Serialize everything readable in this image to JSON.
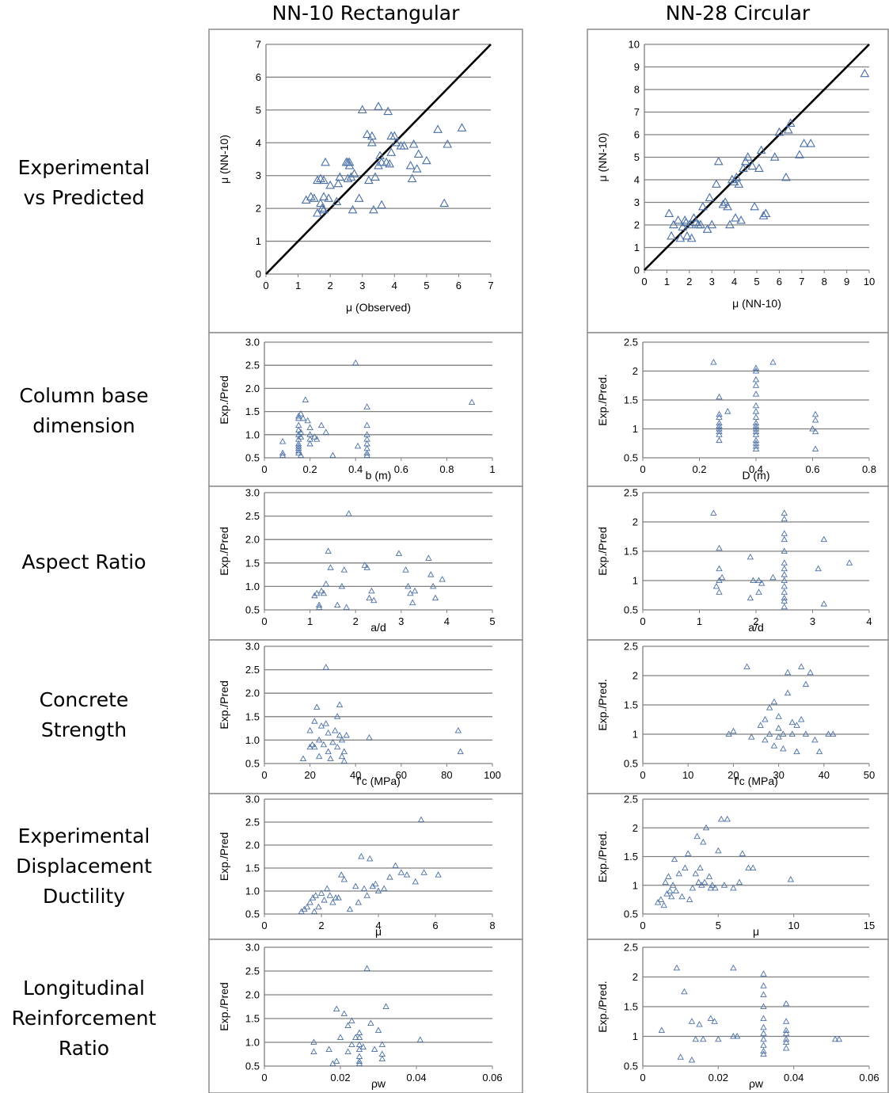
{
  "column_titles": [
    "NN-10 Rectangular",
    "NN-28 Circular"
  ],
  "row_labels": [
    [
      "Experimental",
      "vs Predicted"
    ],
    [
      "Column base",
      "dimension"
    ],
    [
      "Aspect Ratio"
    ],
    [
      "Concrete",
      "Strength"
    ],
    [
      "Experimental",
      "Displacement",
      "Ductility"
    ],
    [
      "Longitudinal",
      "Reinforcement",
      "Ratio"
    ]
  ],
  "colors": {
    "marker": "#4a6fa5",
    "grid": "#808080",
    "frame": "#8c8c8c",
    "diagonal": "#000000"
  },
  "chart_data": [
    {
      "type": "scatter",
      "panel": "rect-exp-vs-pred",
      "xlabel": "μ (Observed)",
      "ylabel": "μ (NN-10)",
      "xlim": [
        0,
        7
      ],
      "ylim": [
        0,
        7
      ],
      "xticks": [
        0,
        1,
        2,
        3,
        4,
        5,
        6,
        7
      ],
      "yticks": [
        0,
        1,
        2,
        3,
        4,
        5,
        6,
        7
      ],
      "grid": "horizontal",
      "reference_line": "y = x",
      "x": [
        1.25,
        1.4,
        1.5,
        1.6,
        1.6,
        1.7,
        1.7,
        1.75,
        1.8,
        1.85,
        1.8,
        1.8,
        1.95,
        2.0,
        2.2,
        2.25,
        2.3,
        2.5,
        2.55,
        2.55,
        2.6,
        2.6,
        2.65,
        2.7,
        2.75,
        2.9,
        3.0,
        3.15,
        3.2,
        3.3,
        3.3,
        3.35,
        3.4,
        3.5,
        3.5,
        3.55,
        3.6,
        3.6,
        3.75,
        3.8,
        3.85,
        3.9,
        3.9,
        4.0,
        4.05,
        4.2,
        4.3,
        4.5,
        4.55,
        4.6,
        4.7,
        4.75,
        5.0,
        5.35,
        5.55,
        5.65,
        6.1
      ],
      "y": [
        2.25,
        2.35,
        2.3,
        2.85,
        1.85,
        2.9,
        2.15,
        2.0,
        2.85,
        3.4,
        1.95,
        2.35,
        2.3,
        2.7,
        2.2,
        2.75,
        2.95,
        3.4,
        2.9,
        3.4,
        3.4,
        3.3,
        2.95,
        1.95,
        3.05,
        2.3,
        5.0,
        4.25,
        2.85,
        4.0,
        4.2,
        1.95,
        2.95,
        5.1,
        3.3,
        3.6,
        3.4,
        2.1,
        3.4,
        4.95,
        3.35,
        3.7,
        4.2,
        4.2,
        4.0,
        3.9,
        3.9,
        3.3,
        2.9,
        3.95,
        3.2,
        3.65,
        3.45,
        4.4,
        2.15,
        3.95,
        4.45
      ]
    },
    {
      "type": "scatter",
      "panel": "circ-exp-vs-pred",
      "xlabel": "μ (NN-10)",
      "ylabel": "μ (NN-10)",
      "xlim": [
        0,
        10
      ],
      "ylim": [
        0,
        10
      ],
      "xticks": [
        0,
        1,
        2,
        3,
        4,
        5,
        6,
        7,
        8,
        9,
        10
      ],
      "yticks": [
        0,
        1,
        2,
        3,
        4,
        5,
        6,
        7,
        8,
        9,
        10
      ],
      "grid": "horizontal",
      "reference_line": "y = x",
      "x": [
        1.1,
        1.2,
        1.3,
        1.5,
        1.6,
        1.7,
        1.8,
        1.85,
        1.9,
        2.0,
        2.1,
        2.2,
        2.3,
        2.4,
        2.5,
        2.6,
        2.8,
        2.9,
        3.0,
        3.2,
        3.3,
        3.5,
        3.6,
        3.7,
        3.8,
        3.9,
        4.0,
        4.05,
        4.1,
        4.2,
        4.3,
        4.4,
        4.5,
        4.6,
        4.8,
        4.9,
        5.1,
        5.2,
        5.3,
        5.4,
        5.8,
        6.0,
        6.3,
        6.4,
        6.5,
        6.9,
        7.1,
        7.4,
        9.8
      ],
      "y": [
        2.5,
        1.5,
        2.0,
        2.2,
        1.4,
        1.9,
        2.2,
        2.1,
        1.5,
        2.0,
        1.4,
        2.3,
        2.1,
        2.0,
        2.0,
        2.8,
        1.8,
        3.2,
        2.0,
        3.8,
        4.8,
        2.9,
        3.0,
        2.8,
        2.0,
        4.0,
        3.9,
        2.3,
        4.1,
        3.8,
        2.2,
        4.5,
        4.8,
        5.0,
        4.6,
        2.8,
        4.5,
        5.3,
        2.4,
        2.5,
        5.0,
        6.1,
        4.1,
        6.2,
        6.5,
        5.1,
        5.6,
        5.6,
        8.7
      ]
    },
    {
      "type": "scatter",
      "panel": "rect-base-dim",
      "xlabel": "b (m)",
      "ylabel": "Exp./Pred",
      "xlim": [
        0,
        1
      ],
      "ylim": [
        0.5,
        3.0
      ],
      "xticks": [
        0,
        0.2,
        0.4,
        0.6,
        0.8,
        1
      ],
      "yticks": [
        0.5,
        1.0,
        1.5,
        2.0,
        2.5,
        3.0
      ],
      "grid": "horizontal",
      "x": [
        0.08,
        0.08,
        0.08,
        0.15,
        0.15,
        0.15,
        0.15,
        0.15,
        0.15,
        0.15,
        0.15,
        0.15,
        0.15,
        0.15,
        0.16,
        0.16,
        0.16,
        0.16,
        0.17,
        0.18,
        0.19,
        0.2,
        0.2,
        0.2,
        0.2,
        0.22,
        0.23,
        0.25,
        0.27,
        0.3,
        0.4,
        0.41,
        0.45,
        0.45,
        0.45,
        0.45,
        0.45,
        0.45,
        0.45,
        0.45,
        0.91
      ],
      "y": [
        0.55,
        0.6,
        0.85,
        1.4,
        1.35,
        1.2,
        1.1,
        1.0,
        0.9,
        0.8,
        0.75,
        0.7,
        0.65,
        0.6,
        1.45,
        1.05,
        0.95,
        0.55,
        1.35,
        1.75,
        1.3,
        1.15,
        1.0,
        0.9,
        0.8,
        0.95,
        0.9,
        1.2,
        1.05,
        0.55,
        2.55,
        0.75,
        1.6,
        1.2,
        1.0,
        0.9,
        0.8,
        0.7,
        0.6,
        0.55,
        1.7
      ]
    },
    {
      "type": "scatter",
      "panel": "circ-base-dim",
      "xlabel": "D (m)",
      "ylabel": "Exp./Pred.",
      "xlim": [
        0,
        0.8
      ],
      "ylim": [
        0.5,
        2.5
      ],
      "xticks": [
        0,
        0.2,
        0.4,
        0.6,
        0.8
      ],
      "yticks": [
        0.5,
        1,
        1.5,
        2,
        2.5
      ],
      "grid": "horizontal",
      "x": [
        0.25,
        0.27,
        0.27,
        0.27,
        0.27,
        0.27,
        0.27,
        0.27,
        0.27,
        0.27,
        0.3,
        0.4,
        0.4,
        0.4,
        0.4,
        0.4,
        0.4,
        0.4,
        0.4,
        0.4,
        0.4,
        0.4,
        0.4,
        0.4,
        0.4,
        0.4,
        0.4,
        0.4,
        0.46,
        0.6,
        0.61,
        0.61,
        0.61,
        0.61
      ],
      "y": [
        2.15,
        1.55,
        1.25,
        1.2,
        1.1,
        1.05,
        1.0,
        0.95,
        0.9,
        0.8,
        1.3,
        2.05,
        2.0,
        1.85,
        1.75,
        1.6,
        1.4,
        1.3,
        1.2,
        1.1,
        1.05,
        1.0,
        0.95,
        0.9,
        0.8,
        0.75,
        0.7,
        0.65,
        2.15,
        1.0,
        1.25,
        1.15,
        0.95,
        0.65
      ]
    },
    {
      "type": "scatter",
      "panel": "rect-aspect",
      "xlabel": "a/d",
      "ylabel": "Exp./Pred",
      "xlim": [
        0,
        5
      ],
      "ylim": [
        0.5,
        3.0
      ],
      "xticks": [
        0,
        1,
        2,
        3,
        4,
        5
      ],
      "yticks": [
        0.5,
        1.0,
        1.5,
        2.0,
        2.5,
        3.0
      ],
      "grid": "horizontal",
      "x": [
        1.1,
        1.15,
        1.2,
        1.2,
        1.25,
        1.3,
        1.35,
        1.4,
        1.45,
        1.6,
        1.7,
        1.75,
        1.8,
        1.85,
        2.2,
        2.25,
        2.3,
        2.35,
        2.4,
        2.95,
        3.1,
        3.15,
        3.2,
        3.25,
        3.3,
        3.6,
        3.65,
        3.7,
        3.75,
        3.9
      ],
      "y": [
        0.8,
        0.85,
        0.6,
        0.55,
        0.9,
        0.85,
        1.05,
        1.75,
        1.4,
        0.6,
        1.0,
        1.35,
        0.55,
        2.55,
        1.45,
        1.4,
        0.75,
        0.9,
        0.7,
        1.7,
        1.35,
        1.0,
        0.85,
        0.65,
        0.9,
        1.6,
        1.25,
        1.0,
        0.75,
        1.15
      ]
    },
    {
      "type": "scatter",
      "panel": "circ-aspect",
      "xlabel": "a/d",
      "ylabel": "Exp./Pred",
      "xlim": [
        0,
        4
      ],
      "ylim": [
        0.5,
        2.5
      ],
      "xticks": [
        0,
        1,
        2,
        3,
        4
      ],
      "yticks": [
        0.5,
        1,
        1.5,
        2,
        2.5
      ],
      "grid": "horizontal",
      "x": [
        1.25,
        1.3,
        1.35,
        1.35,
        1.35,
        1.35,
        1.4,
        1.9,
        1.9,
        1.95,
        2.05,
        2.05,
        2.1,
        2.3,
        2.5,
        2.5,
        2.5,
        2.5,
        2.5,
        2.5,
        2.5,
        2.5,
        2.5,
        2.5,
        2.5,
        2.5,
        2.5,
        2.5,
        3.1,
        3.2,
        3.2,
        3.65
      ],
      "y": [
        2.15,
        0.9,
        1.55,
        1.2,
        1.0,
        0.8,
        1.05,
        1.4,
        0.7,
        1.0,
        1.0,
        0.8,
        0.95,
        1.05,
        2.15,
        2.05,
        1.8,
        1.7,
        1.5,
        1.3,
        1.2,
        1.1,
        1.0,
        0.9,
        0.8,
        0.7,
        0.65,
        0.55,
        1.2,
        1.7,
        0.6,
        1.3
      ]
    },
    {
      "type": "scatter",
      "panel": "rect-concrete",
      "xlabel": "f'c (MPa)",
      "ylabel": "Exp./Pred",
      "xlim": [
        0,
        100
      ],
      "ylim": [
        0.5,
        3.0
      ],
      "xticks": [
        0,
        20,
        40,
        60,
        80,
        100
      ],
      "yticks": [
        0.5,
        1.0,
        1.5,
        2.0,
        2.5,
        3.0
      ],
      "grid": "horizontal",
      "x": [
        17,
        20,
        20,
        21,
        22,
        22,
        23,
        24,
        24,
        25,
        26,
        27,
        27,
        28,
        28,
        29,
        30,
        31,
        32,
        32,
        33,
        33,
        34,
        34,
        35,
        35,
        36,
        46,
        85,
        86
      ],
      "y": [
        0.6,
        0.85,
        1.2,
        0.9,
        1.4,
        0.85,
        1.7,
        1.0,
        0.65,
        1.3,
        0.9,
        2.55,
        1.35,
        1.15,
        0.75,
        0.6,
        0.95,
        1.2,
        1.5,
        0.85,
        1.75,
        1.1,
        0.65,
        1.0,
        0.55,
        0.75,
        1.1,
        1.05,
        1.2,
        0.75
      ]
    },
    {
      "type": "scatter",
      "panel": "circ-concrete",
      "xlabel": "f'c (MPa)",
      "ylabel": "Exp./Pred.",
      "xlim": [
        0,
        50
      ],
      "ylim": [
        0.5,
        2.5
      ],
      "xticks": [
        0,
        10,
        20,
        30,
        40,
        50
      ],
      "yticks": [
        0.5,
        1,
        1.5,
        2,
        2.5
      ],
      "grid": "horizontal",
      "x": [
        19,
        20,
        23,
        24,
        26,
        27,
        27,
        28,
        28,
        29,
        29,
        30,
        30,
        30,
        31,
        31,
        32,
        32,
        33,
        33,
        34,
        34,
        35,
        35,
        36,
        36,
        37,
        38,
        39,
        41,
        42
      ],
      "y": [
        1.0,
        1.05,
        2.15,
        0.95,
        1.15,
        1.25,
        0.9,
        1.45,
        1.0,
        1.55,
        0.8,
        1.3,
        1.1,
        0.95,
        1.0,
        0.75,
        1.7,
        2.05,
        1.2,
        1.0,
        1.15,
        0.7,
        2.15,
        1.25,
        1.85,
        1.0,
        2.05,
        0.9,
        0.7,
        1.0,
        1.0
      ]
    },
    {
      "type": "scatter",
      "panel": "rect-ductility",
      "xlabel": "μ",
      "ylabel": "Exp./Pred",
      "xlim": [
        0,
        8
      ],
      "ylim": [
        0.5,
        3.0
      ],
      "xticks": [
        0,
        2,
        4,
        6,
        8
      ],
      "yticks": [
        0.5,
        1.0,
        1.5,
        2.0,
        2.5,
        3.0
      ],
      "grid": "horizontal",
      "x": [
        1.3,
        1.4,
        1.5,
        1.6,
        1.7,
        1.75,
        1.8,
        1.9,
        2.0,
        2.1,
        2.2,
        2.3,
        2.4,
        2.5,
        2.6,
        2.7,
        2.8,
        3.0,
        3.2,
        3.3,
        3.4,
        3.5,
        3.6,
        3.7,
        3.8,
        3.9,
        4.0,
        4.2,
        4.4,
        4.6,
        4.8,
        5.0,
        5.3,
        5.5,
        5.6,
        6.1
      ],
      "y": [
        0.55,
        0.6,
        0.65,
        0.75,
        0.85,
        0.55,
        0.9,
        0.65,
        0.95,
        0.8,
        1.05,
        0.9,
        0.75,
        0.85,
        0.85,
        1.35,
        1.25,
        0.6,
        1.1,
        0.75,
        1.75,
        1.05,
        0.9,
        1.7,
        1.1,
        1.15,
        1.0,
        1.05,
        1.3,
        1.55,
        1.4,
        1.35,
        1.2,
        2.55,
        1.4,
        1.35
      ]
    },
    {
      "type": "scatter",
      "panel": "circ-ductility",
      "xlabel": "μ",
      "ylabel": "Exp./Pred.",
      "xlim": [
        0,
        15
      ],
      "ylim": [
        0.5,
        2.5
      ],
      "xticks": [
        0,
        5,
        10,
        15
      ],
      "yticks": [
        0.5,
        1,
        1.5,
        2,
        2.5
      ],
      "grid": "horizontal",
      "x": [
        1.0,
        1.2,
        1.4,
        1.5,
        1.6,
        1.7,
        1.8,
        1.9,
        2.0,
        2.1,
        2.2,
        2.4,
        2.6,
        2.8,
        3.0,
        3.1,
        3.3,
        3.5,
        3.6,
        3.7,
        3.8,
        3.9,
        4.0,
        4.1,
        4.2,
        4.4,
        4.5,
        4.6,
        4.8,
        5.0,
        5.2,
        5.4,
        5.6,
        6.0,
        6.4,
        6.6,
        7.0,
        7.3,
        9.8
      ],
      "y": [
        0.7,
        0.75,
        0.65,
        1.05,
        0.85,
        1.15,
        0.9,
        0.8,
        1.0,
        1.45,
        0.9,
        1.2,
        0.8,
        1.3,
        1.55,
        0.75,
        0.95,
        1.2,
        1.85,
        1.05,
        1.3,
        1.0,
        1.75,
        1.05,
        2.0,
        1.15,
        0.95,
        1.0,
        0.95,
        1.6,
        2.15,
        1.0,
        2.15,
        0.95,
        1.05,
        1.55,
        1.3,
        1.3,
        1.1
      ]
    },
    {
      "type": "scatter",
      "panel": "rect-long-reinf",
      "xlabel": "ρw",
      "ylabel": "Exp./Pred",
      "xlim": [
        0,
        0.06
      ],
      "ylim": [
        0.5,
        3.0
      ],
      "xticks": [
        0,
        0.02,
        0.04,
        0.06
      ],
      "yticks": [
        0.5,
        1.0,
        1.5,
        2.0,
        2.5,
        3.0
      ],
      "grid": "horizontal",
      "x": [
        0.013,
        0.013,
        0.017,
        0.018,
        0.019,
        0.019,
        0.02,
        0.021,
        0.022,
        0.022,
        0.023,
        0.023,
        0.024,
        0.025,
        0.025,
        0.025,
        0.025,
        0.025,
        0.025,
        0.025,
        0.026,
        0.027,
        0.028,
        0.029,
        0.03,
        0.031,
        0.031,
        0.031,
        0.032,
        0.041
      ],
      "y": [
        1.0,
        0.8,
        0.85,
        0.55,
        1.7,
        0.6,
        1.1,
        1.6,
        1.35,
        0.8,
        1.45,
        0.95,
        1.1,
        1.2,
        1.1,
        0.95,
        0.85,
        0.7,
        0.6,
        0.55,
        0.9,
        2.55,
        1.4,
        0.85,
        1.25,
        0.95,
        0.75,
        0.65,
        1.75,
        1.05
      ]
    },
    {
      "type": "scatter",
      "panel": "circ-long-reinf",
      "xlabel": "ρw",
      "ylabel": "Exp./Pred.",
      "xlim": [
        0,
        0.06
      ],
      "ylim": [
        0.5,
        2.5
      ],
      "xticks": [
        0,
        0.02,
        0.04,
        0.06
      ],
      "yticks": [
        0.5,
        1,
        1.5,
        2,
        2.5
      ],
      "grid": "horizontal",
      "x": [
        0.005,
        0.009,
        0.01,
        0.011,
        0.013,
        0.013,
        0.014,
        0.015,
        0.016,
        0.018,
        0.019,
        0.02,
        0.024,
        0.024,
        0.025,
        0.032,
        0.032,
        0.032,
        0.032,
        0.032,
        0.032,
        0.032,
        0.032,
        0.032,
        0.032,
        0.032,
        0.038,
        0.038,
        0.038,
        0.038,
        0.038,
        0.038,
        0.038,
        0.051,
        0.052
      ],
      "y": [
        1.1,
        2.15,
        0.65,
        1.75,
        1.25,
        0.6,
        0.95,
        1.2,
        0.95,
        1.3,
        1.25,
        0.95,
        2.15,
        1.0,
        1.0,
        2.05,
        1.85,
        1.7,
        1.5,
        1.3,
        1.15,
        1.05,
        0.95,
        0.85,
        0.75,
        0.7,
        1.55,
        1.25,
        1.1,
        1.05,
        0.95,
        0.9,
        0.8,
        0.95,
        0.95
      ]
    }
  ]
}
